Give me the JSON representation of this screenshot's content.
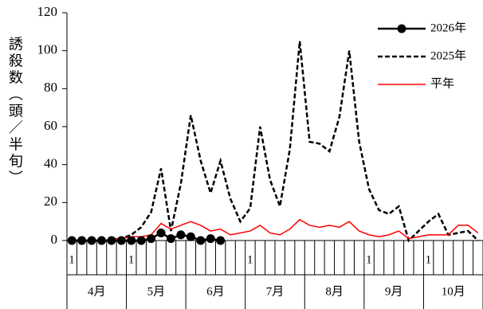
{
  "chart_data": {
    "type": "line",
    "y_label": "誘殺数（頭／半旬）",
    "months": [
      "4月",
      "5月",
      "6月",
      "7月",
      "8月",
      "9月",
      "10月"
    ],
    "categories": [
      "1",
      null,
      null,
      null,
      null,
      null,
      "1",
      null,
      null,
      null,
      null,
      null,
      null,
      null,
      null,
      null,
      null,
      null,
      "1",
      null,
      null,
      null,
      null,
      null,
      null,
      null,
      null,
      null,
      null,
      null,
      "1",
      null,
      null,
      null,
      null,
      null,
      "1",
      null,
      null,
      null,
      null,
      null
    ],
    "ylim": [
      0,
      120
    ],
    "yticks": [
      0,
      20,
      40,
      60,
      80,
      100,
      120
    ],
    "legend": "upper right",
    "series": [
      {
        "name": "2026年",
        "color": "#000000",
        "style": "solid-marker",
        "values": [
          0,
          0,
          0,
          0,
          0,
          0,
          0,
          0,
          1,
          4,
          1,
          3,
          2,
          0,
          1,
          0,
          null,
          null,
          null,
          null,
          null,
          null,
          null,
          null,
          null,
          null,
          null,
          null,
          null,
          null,
          null,
          null,
          null,
          null,
          null,
          null,
          null,
          null,
          null,
          null,
          null,
          null
        ]
      },
      {
        "name": "2025年",
        "color": "#000000",
        "style": "dashed",
        "values": [
          null,
          null,
          null,
          null,
          0,
          1,
          3,
          7,
          15,
          38,
          5,
          30,
          66,
          42,
          25,
          42,
          22,
          10,
          17,
          60,
          32,
          18,
          48,
          105,
          52,
          51,
          47,
          65,
          100,
          52,
          27,
          16,
          14,
          18,
          0,
          5,
          10,
          14,
          3,
          4,
          5,
          0
        ]
      },
      {
        "name": "平年",
        "color": "#ff0000",
        "style": "solid",
        "values": [
          null,
          null,
          null,
          null,
          1,
          1,
          2,
          2,
          3,
          9,
          6,
          8,
          10,
          8,
          5,
          6,
          3,
          4,
          5,
          8,
          4,
          3,
          6,
          11,
          8,
          7,
          8,
          7,
          10,
          5,
          3,
          2,
          3,
          5,
          1,
          2,
          3,
          3,
          3,
          8,
          8,
          4
        ]
      }
    ]
  }
}
